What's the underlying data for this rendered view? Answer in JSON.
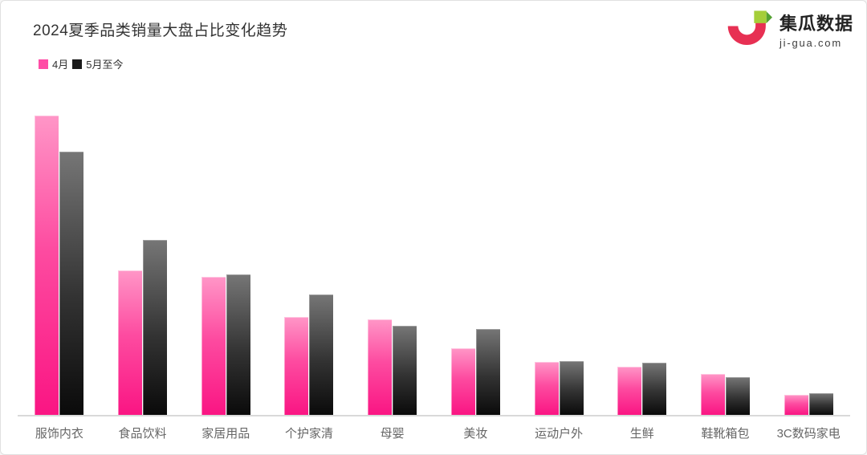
{
  "header": {
    "title": "2024夏季品类销量大盘占比变化趋势"
  },
  "brand": {
    "name": "集瓜数据",
    "domain": "ji-gua.com",
    "logo_colors": {
      "red": "#e73053",
      "green": "#a5ce39",
      "dark_green": "#55a233"
    }
  },
  "legend": [
    {
      "label": "4月",
      "color": "#ff4da6"
    },
    {
      "label": "5月至今",
      "color": "#1b1b1b"
    }
  ],
  "colors": {
    "april_bar_top": "#ff96c7",
    "april_bar_bottom": "#fa1583",
    "may_bar_top": "#767676",
    "may_bar_bottom": "#0a0a0a",
    "axis_line": "#d9d9d9",
    "category_label": "#666666",
    "title_text": "#333333"
  },
  "chart_data": {
    "type": "bar",
    "title": "2024夏季品类销量大盘占比变化趋势",
    "categories": [
      "服饰内衣",
      "食品饮料",
      "家居用品",
      "个护家清",
      "母婴",
      "美妆",
      "运动户外",
      "生鲜",
      "鞋靴箱包",
      "3C数码家电"
    ],
    "series": [
      {
        "name": "4月",
        "values": [
          30.0,
          14.5,
          13.8,
          9.8,
          9.6,
          6.7,
          5.3,
          4.8,
          4.1,
          2.0
        ]
      },
      {
        "name": "5月至今",
        "values": [
          26.4,
          17.5,
          14.1,
          12.1,
          8.9,
          8.6,
          5.4,
          5.2,
          3.8,
          2.2
        ]
      }
    ],
    "xlabel": "",
    "ylabel": "",
    "ylim": [
      0,
      32
    ],
    "values_estimated": true,
    "unit": "percent",
    "grid": false,
    "y_axis_labels_visible": false,
    "legend_position": "top-left"
  }
}
